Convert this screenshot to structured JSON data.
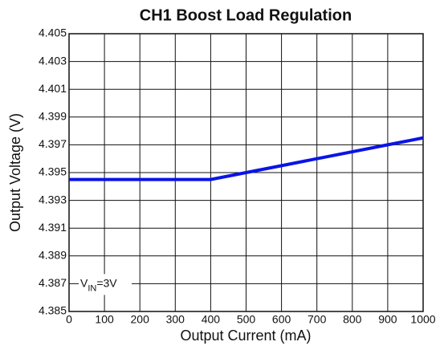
{
  "chart_data": {
    "type": "line",
    "title": "CH1 Boost Load Regulation",
    "x_label": "Output Current (mA)",
    "y_label": "Output Voltage (V)",
    "annotation": [
      "V",
      "IN",
      "=3V"
    ],
    "x": [
      0,
      100,
      200,
      300,
      400,
      500,
      600,
      700,
      800,
      900,
      1000
    ],
    "series": [
      {
        "name": "VIN=3V",
        "color": "#0a14e6",
        "values": [
          4.3945,
          4.3945,
          4.3945,
          4.3945,
          4.3945,
          4.395,
          4.3955,
          4.396,
          4.3965,
          4.397,
          4.3975
        ]
      }
    ],
    "xlim": [
      0,
      1000
    ],
    "xticks": [
      0,
      100,
      200,
      300,
      400,
      500,
      600,
      700,
      800,
      900,
      1000
    ],
    "ylim": [
      4.385,
      4.405
    ],
    "yticks": [
      4.385,
      4.387,
      4.389,
      4.391,
      4.393,
      4.395,
      4.397,
      4.399,
      4.401,
      4.403,
      4.405
    ],
    "grid": true
  }
}
